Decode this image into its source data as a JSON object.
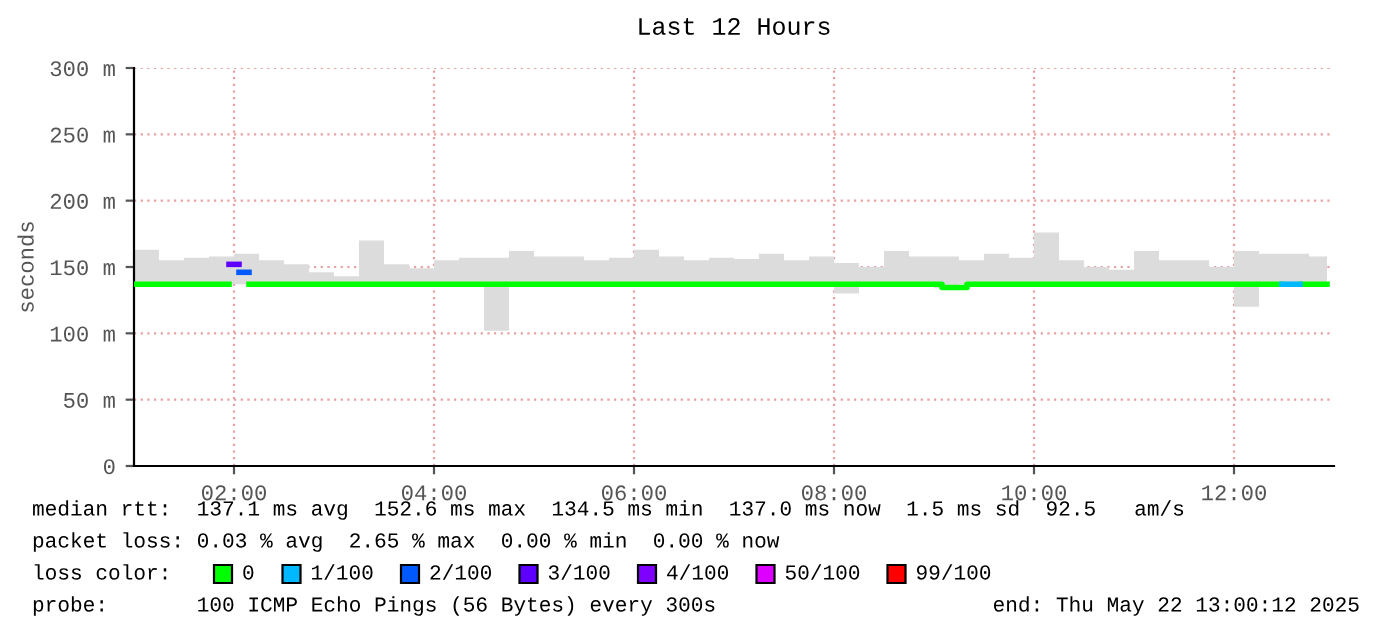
{
  "chart_data": {
    "type": "line",
    "title": "Last 12 Hours",
    "ylabel": "seconds",
    "legend_title": "loss color:",
    "legend": "bottom",
    "grid": true,
    "xlim": [
      1,
      13
    ],
    "xticks": [
      {
        "value": 2,
        "label": "02:00"
      },
      {
        "value": 4,
        "label": "04:00"
      },
      {
        "value": 6,
        "label": "06:00"
      },
      {
        "value": 8,
        "label": "08:00"
      },
      {
        "value": 10,
        "label": "10:00"
      },
      {
        "value": 12,
        "label": "12:00"
      }
    ],
    "ylim": [
      0,
      300
    ],
    "yticks": [
      0,
      {
        "value": 50,
        "label": "50 m"
      },
      {
        "value": 100,
        "label": "100 m"
      },
      {
        "value": 150,
        "label": "150 m"
      },
      {
        "value": 200,
        "label": "200 m"
      },
      {
        "value": 250,
        "label": "250 m"
      },
      {
        "value": 300,
        "label": "300 m"
      }
    ],
    "series": [
      {
        "name": "0",
        "color": "#00ff00",
        "x": [
          1.0,
          1.25,
          1.5,
          1.75,
          1.95,
          2.0,
          2.15,
          2.25,
          2.5,
          2.75,
          3.0,
          3.25,
          3.5,
          3.75,
          4.0,
          4.25,
          4.5,
          4.75,
          5.0,
          5.25,
          5.5,
          5.75,
          6.0,
          6.25,
          6.5,
          6.75,
          7.0,
          7.25,
          7.5,
          7.75,
          8.0,
          8.25,
          8.5,
          8.75,
          9.0,
          9.08,
          9.08,
          9.25,
          9.33,
          9.33,
          9.5,
          9.75,
          10.0,
          10.25,
          10.5,
          10.75,
          11.0,
          11.25,
          11.5,
          11.75,
          12.0,
          12.25,
          12.48,
          12.5,
          12.66,
          12.75,
          12.93
        ],
        "values": [
          137,
          137,
          137,
          137,
          137,
          null,
          137,
          137,
          137,
          137,
          137,
          137,
          137,
          137,
          137,
          137,
          137,
          137,
          137,
          137,
          137,
          137,
          137,
          137,
          137,
          137,
          137,
          137,
          137,
          137,
          137,
          137,
          137,
          137,
          137,
          137,
          134.5,
          134.5,
          134.5,
          137,
          137,
          137,
          137,
          137,
          137,
          137,
          137,
          137,
          137,
          137,
          137,
          137,
          137,
          null,
          137,
          137,
          137
        ],
        "lower": [
          137,
          137,
          137,
          137,
          137,
          137,
          137,
          137,
          137,
          137,
          137,
          137,
          137,
          137,
          137,
          137,
          102,
          137,
          137,
          137,
          137,
          137,
          137,
          137,
          137,
          137,
          137,
          137,
          137,
          137,
          130,
          137,
          137,
          137,
          134,
          134,
          134,
          137,
          137,
          137,
          137,
          137,
          137,
          137,
          137,
          137,
          137,
          137,
          137,
          137,
          120,
          137,
          137,
          137,
          137,
          137,
          137
        ],
        "upper": [
          163,
          155,
          157,
          158,
          158,
          160,
          160,
          155,
          152,
          146,
          143,
          170,
          152,
          149,
          155,
          157,
          157,
          162,
          158,
          158,
          155,
          157,
          163,
          158,
          155,
          157,
          156,
          160,
          155,
          158,
          153,
          150,
          162,
          158,
          158,
          158,
          158,
          155,
          155,
          155,
          160,
          157,
          176,
          155,
          150,
          148,
          162,
          155,
          155,
          150,
          162,
          160,
          160,
          160,
          160,
          158,
          158
        ]
      },
      {
        "name": "1/100",
        "color": "#00b8ff",
        "x": [
          12.48,
          12.66
        ],
        "values": [
          137,
          137
        ]
      },
      {
        "name": "2/100",
        "color": "#0059ff",
        "x": [
          2.05,
          2.15
        ],
        "values": [
          146,
          146
        ]
      },
      {
        "name": "3/100",
        "color": "#5e00ff",
        "x": [
          1.95,
          2.05
        ],
        "values": [
          152,
          152
        ]
      },
      {
        "name": "4/100",
        "color": "#7e00ff"
      },
      {
        "name": "50/100",
        "color": "#dd00ff"
      },
      {
        "name": "99/100",
        "color": "#ff0000"
      }
    ],
    "annotations": [
      "median rtt:  137.1 ms avg  152.6 ms max  134.5 ms min  137.0 ms now  1.5 ms sd  92.5   am/s",
      "packet loss: 0.03 % avg  2.65 % max  0.00 % min  0.00 % now",
      "probe:       100 ICMP Echo Pings (56 Bytes) every 300s",
      "end: Thu May 22 13:00:12 2025"
    ]
  }
}
